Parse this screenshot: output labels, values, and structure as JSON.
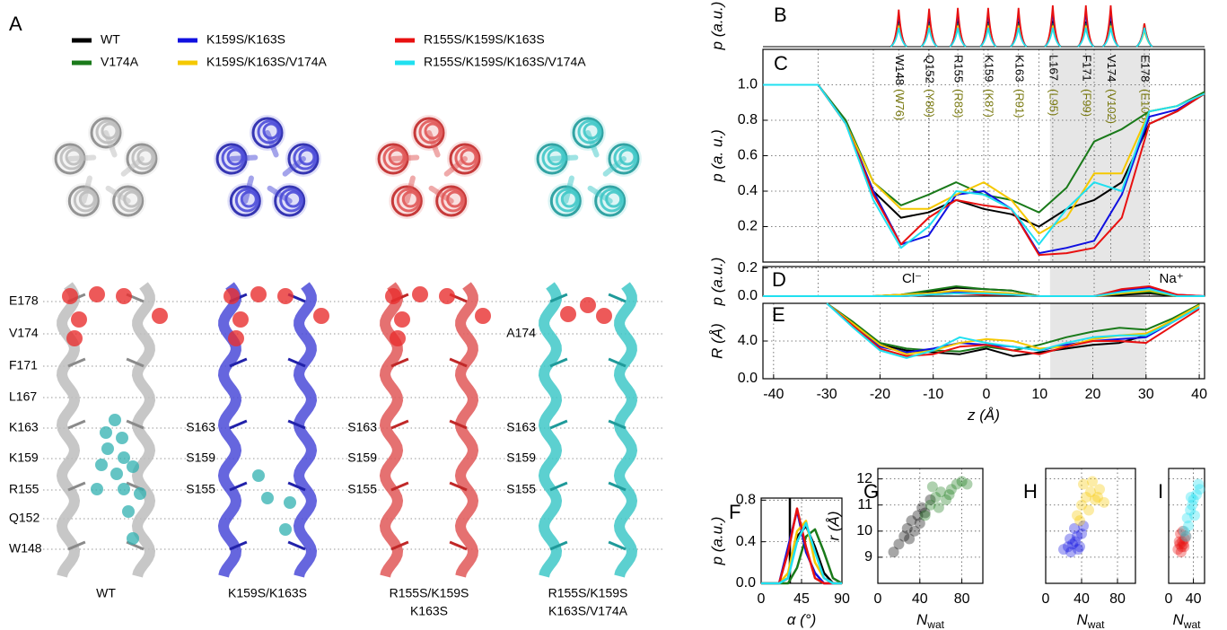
{
  "panel_a": {
    "letter": "A",
    "residues": [
      "E178",
      "V174",
      "F171",
      "L167",
      "K163",
      "K159",
      "R155",
      "Q152",
      "W148"
    ],
    "mutations": [
      "S163",
      "S159",
      "S155"
    ],
    "a174": "A174",
    "captions": [
      [
        "WT"
      ],
      [
        "K159S/K163S"
      ],
      [
        "R155S/K159S",
        "K163S"
      ],
      [
        "R155S/K159S",
        "K163S/V174A"
      ]
    ]
  },
  "chart_data": [
    {
      "type": "peaks",
      "letter": "B",
      "ylabel": "p (a.u.)",
      "xlim": [
        -40,
        40
      ],
      "ylim": [
        0,
        1
      ],
      "x": [
        -15.4,
        -9.9,
        -4.7,
        0.8,
        6.3,
        12.5,
        18.5,
        23.0,
        29.1
      ],
      "series": [
        {
          "color": "#000000",
          "values": [
            0.62,
            0.6,
            0.62,
            0.6,
            0.6,
            0.62,
            0.6,
            0.62,
            0.45
          ]
        },
        {
          "color": "#1a7a1a",
          "values": [
            0.55,
            0.55,
            0.55,
            0.55,
            0.55,
            0.55,
            0.55,
            0.55,
            0.55
          ]
        },
        {
          "color": "#1010e0",
          "values": [
            0.8,
            0.8,
            0.82,
            0.82,
            0.82,
            0.85,
            0.85,
            0.85,
            0.5
          ]
        },
        {
          "color": "#f5c800",
          "values": [
            0.5,
            0.5,
            0.5,
            0.5,
            0.5,
            0.5,
            0.5,
            0.5,
            0.4
          ]
        },
        {
          "color": "#e81010",
          "values": [
            0.88,
            0.9,
            0.92,
            0.92,
            0.92,
            0.98,
            0.98,
            0.98,
            0.55
          ]
        },
        {
          "color": "#20e0f0",
          "values": [
            0.45,
            0.45,
            0.45,
            0.45,
            0.45,
            0.45,
            0.45,
            0.45,
            0.45
          ]
        }
      ]
    },
    {
      "type": "line",
      "letter": "C",
      "ylabel": "p (a. u.)",
      "xlim": [
        -40,
        40
      ],
      "ylim": [
        0,
        1.2
      ],
      "yticks": [
        0.2,
        0.4,
        0.6,
        0.8,
        {
          "value": 1,
          "label": "1.0"
        }
      ],
      "highlight": [
        12,
        30
      ],
      "residues": [
        {
          "label": "W148",
          "alt": "(W76)",
          "x": -15.4
        },
        {
          "label": "Q152",
          "alt": "(Y80)",
          "x": -9.9
        },
        {
          "label": "R155",
          "alt": "(R83)",
          "x": -4.7
        },
        {
          "label": "K159",
          "alt": "(K87)",
          "x": 0.8
        },
        {
          "label": "K163",
          "alt": "(R91)",
          "x": 6.3
        },
        {
          "label": "L167",
          "alt": "(L95)",
          "x": 12.5
        },
        {
          "label": "F171",
          "alt": "(F99)",
          "x": 18.5
        },
        {
          "label": "V174",
          "alt": "(V102)",
          "x": 23.0
        },
        {
          "label": "E178",
          "alt": "(E106)",
          "x": 29.1
        }
      ],
      "x": [
        -40,
        -35,
        -30,
        -25,
        -20,
        -15,
        -10,
        -5,
        0,
        5,
        10,
        15,
        20,
        25,
        30,
        35,
        40
      ],
      "series": [
        {
          "name": "WT",
          "color": "#000000",
          "values": [
            1,
            1,
            1,
            0.78,
            0.4,
            0.25,
            0.28,
            0.35,
            0.3,
            0.27,
            0.2,
            0.3,
            0.35,
            0.45,
            0.78,
            0.85,
            0.95
          ]
        },
        {
          "name": "V174A",
          "color": "#1a7a1a",
          "values": [
            1,
            1,
            1,
            0.8,
            0.45,
            0.32,
            0.38,
            0.45,
            0.38,
            0.35,
            0.28,
            0.42,
            0.68,
            0.75,
            0.85,
            0.88,
            0.96
          ]
        },
        {
          "name": "K159S/K163S",
          "color": "#1010e0",
          "values": [
            1,
            1,
            1,
            0.78,
            0.4,
            0.1,
            0.15,
            0.38,
            0.4,
            0.3,
            0.05,
            0.08,
            0.12,
            0.38,
            0.82,
            0.86,
            0.95
          ]
        },
        {
          "name": "K159S/K163S/V174A",
          "color": "#f5c800",
          "values": [
            1,
            1,
            1,
            0.78,
            0.45,
            0.3,
            0.3,
            0.38,
            0.45,
            0.35,
            0.16,
            0.25,
            0.5,
            0.5,
            0.85,
            0.88,
            0.95
          ]
        },
        {
          "name": "R155S/K159S/K163S",
          "color": "#e81010",
          "values": [
            1,
            1,
            1,
            0.78,
            0.38,
            0.1,
            0.25,
            0.35,
            0.32,
            0.3,
            0.04,
            0.05,
            0.08,
            0.25,
            0.78,
            0.85,
            0.95
          ]
        },
        {
          "name": "R155S/K159S/K163S/V174A",
          "color": "#20e0f0",
          "values": [
            1,
            1,
            1,
            0.78,
            0.35,
            0.08,
            0.2,
            0.4,
            0.38,
            0.3,
            0.1,
            0.3,
            0.45,
            0.4,
            0.85,
            0.88,
            0.95
          ]
        }
      ]
    },
    {
      "type": "line",
      "letter": "D",
      "ylabel": "p (a.u.)",
      "xlim": [
        -40,
        40
      ],
      "ylim": [
        0,
        0.21
      ],
      "yticks": [
        {
          "value": 0,
          "label": "0.0"
        },
        0.2
      ],
      "highlight": [
        12,
        30
      ],
      "annotations": [
        {
          "text": "Cl⁻",
          "x": -13
        },
        {
          "text": "Na⁺",
          "x": 34
        }
      ],
      "x": [
        -40,
        -35,
        -30,
        -25,
        -20,
        -15,
        -10,
        -5,
        0,
        5,
        10,
        15,
        20,
        25,
        30,
        35,
        40
      ],
      "series": [
        {
          "color": "#000000",
          "values": [
            0,
            0,
            0,
            0,
            0,
            0.01,
            0.03,
            0.06,
            0.05,
            0.04,
            0,
            0,
            0,
            0.01,
            0.02,
            0,
            0
          ]
        },
        {
          "color": "#1a7a1a",
          "values": [
            0,
            0,
            0,
            0,
            0,
            0.01,
            0.04,
            0.07,
            0.05,
            0.04,
            0,
            0,
            0,
            0.02,
            0.03,
            0,
            0
          ]
        },
        {
          "color": "#1010e0",
          "values": [
            0,
            0,
            0,
            0,
            0,
            0,
            0.01,
            0.03,
            0.02,
            0.01,
            0,
            0,
            0,
            0.04,
            0.06,
            0.01,
            0
          ]
        },
        {
          "color": "#f5c800",
          "values": [
            0,
            0,
            0,
            0,
            0,
            0.01,
            0.02,
            0.04,
            0.03,
            0.02,
            0,
            0,
            0,
            0.02,
            0.04,
            0,
            0
          ]
        },
        {
          "color": "#e81010",
          "values": [
            0,
            0,
            0,
            0,
            0,
            0,
            0.01,
            0.02,
            0.01,
            0.01,
            0,
            0,
            0,
            0.05,
            0.07,
            0.01,
            0
          ]
        },
        {
          "color": "#20e0f0",
          "values": [
            0,
            0,
            0,
            0,
            0,
            0,
            0.01,
            0.02,
            0.02,
            0.01,
            0,
            0,
            0,
            0.03,
            0.05,
            0,
            0
          ]
        }
      ]
    },
    {
      "type": "line",
      "letter": "E",
      "ylabel": "R (Å)",
      "xlabel": "z (Å)",
      "xlim": [
        -42,
        41
      ],
      "ylim": [
        0,
        8
      ],
      "xticks": [
        -40,
        -30,
        -20,
        -10,
        0,
        10,
        20,
        30,
        40
      ],
      "yticks": [
        {
          "value": 0,
          "label": "0.0"
        },
        {
          "value": 4,
          "label": "4.0"
        }
      ],
      "highlight": [
        12,
        30
      ],
      "x": [
        -40,
        -35,
        -30,
        -25,
        -20,
        -15,
        -10,
        -5,
        0,
        5,
        10,
        15,
        20,
        25,
        30,
        35,
        40
      ],
      "series": [
        {
          "color": "#000000",
          "values": [
            null,
            null,
            8,
            5.8,
            3.6,
            3.0,
            2.8,
            2.6,
            3.2,
            2.4,
            2.8,
            3.2,
            3.6,
            3.8,
            4.6,
            6.2,
            7.8
          ]
        },
        {
          "color": "#1a7a1a",
          "values": [
            null,
            null,
            8,
            6.0,
            3.8,
            3.2,
            3.0,
            2.9,
            3.4,
            3.0,
            3.6,
            4.4,
            5.0,
            5.4,
            5.2,
            6.4,
            7.9
          ]
        },
        {
          "color": "#1010e0",
          "values": [
            null,
            null,
            8,
            5.6,
            3.4,
            2.8,
            3.2,
            3.8,
            3.6,
            3.4,
            3.0,
            3.6,
            4.0,
            4.2,
            4.4,
            6.0,
            7.6
          ]
        },
        {
          "color": "#f5c800",
          "values": [
            null,
            null,
            8,
            5.8,
            3.6,
            2.6,
            3.0,
            3.8,
            4.2,
            4.0,
            3.2,
            3.4,
            4.2,
            4.6,
            4.8,
            6.2,
            7.8
          ]
        },
        {
          "color": "#e81010",
          "values": [
            null,
            null,
            8,
            5.6,
            3.2,
            2.4,
            2.6,
            3.4,
            3.6,
            3.0,
            2.6,
            3.4,
            4.0,
            4.0,
            3.8,
            5.6,
            7.4
          ]
        },
        {
          "color": "#20e0f0",
          "values": [
            null,
            null,
            8,
            5.4,
            3.0,
            2.2,
            3.0,
            4.4,
            3.8,
            3.4,
            3.0,
            3.8,
            4.4,
            4.6,
            4.6,
            6.0,
            7.6
          ]
        }
      ]
    },
    {
      "type": "line",
      "letter": "F",
      "ylabel": "p (a.u.)",
      "xlabel": "α (°)",
      "xlim": [
        0,
        90
      ],
      "ylim": [
        0,
        0.82
      ],
      "xticks": [
        0,
        45,
        90
      ],
      "yticks": [
        {
          "value": 0,
          "label": "0.0"
        },
        0.4,
        0.8
      ],
      "vline": 32,
      "x": [
        0,
        10,
        20,
        30,
        40,
        50,
        60,
        70,
        80,
        90
      ],
      "series": [
        {
          "color": "#000000",
          "values": [
            0,
            0,
            0,
            0.05,
            0.45,
            0.55,
            0.35,
            0.1,
            0,
            0
          ]
        },
        {
          "color": "#1a7a1a",
          "values": [
            0,
            0,
            0,
            0,
            0.15,
            0.45,
            0.52,
            0.3,
            0.05,
            0
          ]
        },
        {
          "color": "#1010e0",
          "values": [
            0,
            0,
            0,
            0.35,
            0.7,
            0.3,
            0.1,
            0,
            0,
            0
          ]
        },
        {
          "color": "#f5c800",
          "values": [
            0,
            0,
            0,
            0.1,
            0.5,
            0.6,
            0.2,
            0.05,
            0,
            0
          ]
        },
        {
          "color": "#e81010",
          "values": [
            0,
            0,
            0,
            0.3,
            0.72,
            0.35,
            0.05,
            0,
            0,
            0
          ]
        },
        {
          "color": "#20e0f0",
          "values": [
            0,
            0,
            0,
            0.05,
            0.4,
            0.58,
            0.3,
            0.05,
            0,
            0
          ]
        }
      ]
    },
    {
      "type": "scatter",
      "letter": "G",
      "ylabel": "r (Å)",
      "xlabel": "N",
      "xlabel_sub": "wat",
      "xlim": [
        0,
        100
      ],
      "ylim": [
        8,
        12.4
      ],
      "xticks": [
        0,
        40,
        80
      ],
      "yticks": [
        9,
        10,
        11,
        12
      ],
      "series": [
        {
          "color": "#000000",
          "x": [
            15,
            20,
            25,
            28,
            32,
            35,
            38,
            42,
            45,
            50,
            30,
            40
          ],
          "values": [
            9.2,
            9.5,
            9.8,
            10.1,
            10.4,
            10.0,
            10.6,
            10.9,
            10.7,
            11.2,
            9.7,
            10.3
          ]
        },
        {
          "color": "#1a7a1a",
          "x": [
            45,
            50,
            55,
            60,
            65,
            70,
            75,
            80,
            58,
            68,
            52,
            85
          ],
          "values": [
            10.6,
            11.0,
            11.3,
            11.5,
            11.2,
            11.6,
            11.8,
            11.9,
            10.9,
            11.4,
            11.7,
            11.8
          ]
        }
      ]
    },
    {
      "type": "scatter",
      "letter": "H",
      "xlabel": "N",
      "xlabel_sub": "wat",
      "xlim": [
        0,
        100
      ],
      "ylim": [
        8,
        12.4
      ],
      "xticks": [
        0,
        40,
        80
      ],
      "series": [
        {
          "color": "#1010e0",
          "x": [
            20,
            25,
            28,
            30,
            33,
            35,
            38,
            40,
            27,
            32,
            36,
            42
          ],
          "values": [
            9.3,
            9.4,
            9.2,
            9.5,
            9.6,
            9.8,
            9.4,
            9.9,
            9.7,
            10.1,
            9.3,
            10.2
          ]
        },
        {
          "color": "#f5c800",
          "x": [
            35,
            40,
            45,
            50,
            55,
            60,
            42,
            48,
            52,
            58,
            38,
            65
          ],
          "values": [
            10.6,
            11.0,
            11.3,
            11.5,
            11.2,
            11.6,
            11.8,
            10.8,
            11.9,
            11.3,
            10.4,
            11.1
          ]
        }
      ]
    },
    {
      "type": "scatter",
      "letter": "I",
      "xlabel": "N",
      "xlabel_sub": "wat",
      "xlim": [
        0,
        58
      ],
      "ylim": [
        8,
        12.4
      ],
      "xticks": [
        0,
        40
      ],
      "series": [
        {
          "color": "#e81010",
          "x": [
            15,
            18,
            20,
            22,
            25,
            28,
            19,
            24,
            17,
            21,
            26,
            23
          ],
          "values": [
            9.3,
            9.5,
            9.2,
            9.6,
            9.4,
            9.8,
            9.9,
            9.5,
            9.6,
            9.4,
            9.7,
            10.0
          ]
        },
        {
          "color": "#20e0f0",
          "x": [
            25,
            30,
            35,
            40,
            45,
            50,
            32,
            38,
            42,
            48,
            28,
            36
          ],
          "values": [
            10.0,
            10.5,
            10.8,
            11.2,
            11.4,
            11.6,
            10.2,
            11.0,
            10.6,
            11.8,
            9.8,
            11.3
          ]
        }
      ]
    }
  ]
}
